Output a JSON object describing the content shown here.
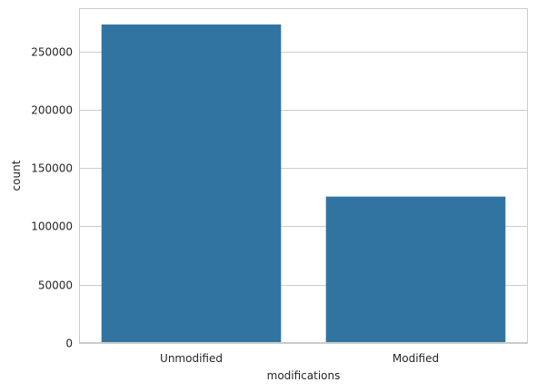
{
  "chart_data": {
    "type": "bar",
    "title": "",
    "xlabel": "modifications",
    "ylabel": "count",
    "categories": [
      "Unmodified",
      "Modified"
    ],
    "values": [
      273000,
      125500
    ],
    "ylim": [
      0,
      287000
    ],
    "yticks": [
      0,
      50000,
      100000,
      150000,
      200000,
      250000
    ],
    "grid": true,
    "bar_color": "#3274a1",
    "grid_color": "#cccccc",
    "axes_edge_color": "#cccccc"
  }
}
